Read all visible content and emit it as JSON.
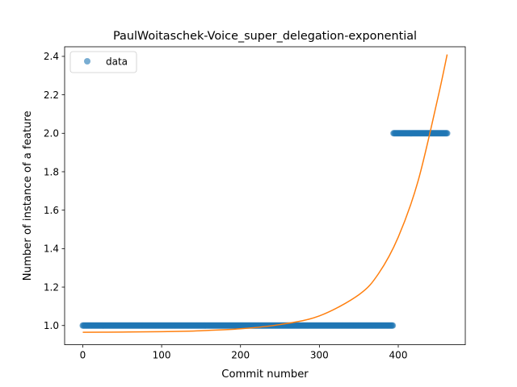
{
  "chart_data": {
    "type": "scatter",
    "title": "PaulWoitaschek-Voice_super_delegation-exponential",
    "xlabel": "Commit number",
    "ylabel": "Number of instance of a feature",
    "xlim": [
      -23,
      485
    ],
    "ylim": [
      0.9,
      2.45
    ],
    "xticks": [
      0,
      100,
      200,
      300,
      400
    ],
    "yticks": [
      1.0,
      1.2,
      1.4,
      1.6,
      1.8,
      2.0,
      2.2,
      2.4
    ],
    "xtick_labels": [
      "0",
      "100",
      "200",
      "300",
      "400"
    ],
    "ytick_labels": [
      "1.0",
      "1.2",
      "1.4",
      "1.6",
      "1.8",
      "2.0",
      "2.2",
      "2.4"
    ],
    "legend": {
      "placement": "upper-left",
      "entries": [
        "data"
      ]
    },
    "grid": false,
    "series": [
      {
        "name": "data",
        "kind": "scatter",
        "color": "#1f77b4",
        "segments": [
          {
            "x_start": 0,
            "x_end": 393,
            "y": 1.0
          },
          {
            "x_start": 394,
            "x_end": 462,
            "y": 2.0
          }
        ]
      },
      {
        "kind": "line",
        "color": "#ff7f0e",
        "x": [
          0,
          50,
          100,
          150,
          200,
          250,
          300,
          350,
          375,
          400,
          425,
          450,
          462
        ],
        "y": [
          0.965,
          0.966,
          0.968,
          0.973,
          0.983,
          1.005,
          1.05,
          1.16,
          1.27,
          1.46,
          1.75,
          2.18,
          2.41
        ]
      }
    ]
  }
}
